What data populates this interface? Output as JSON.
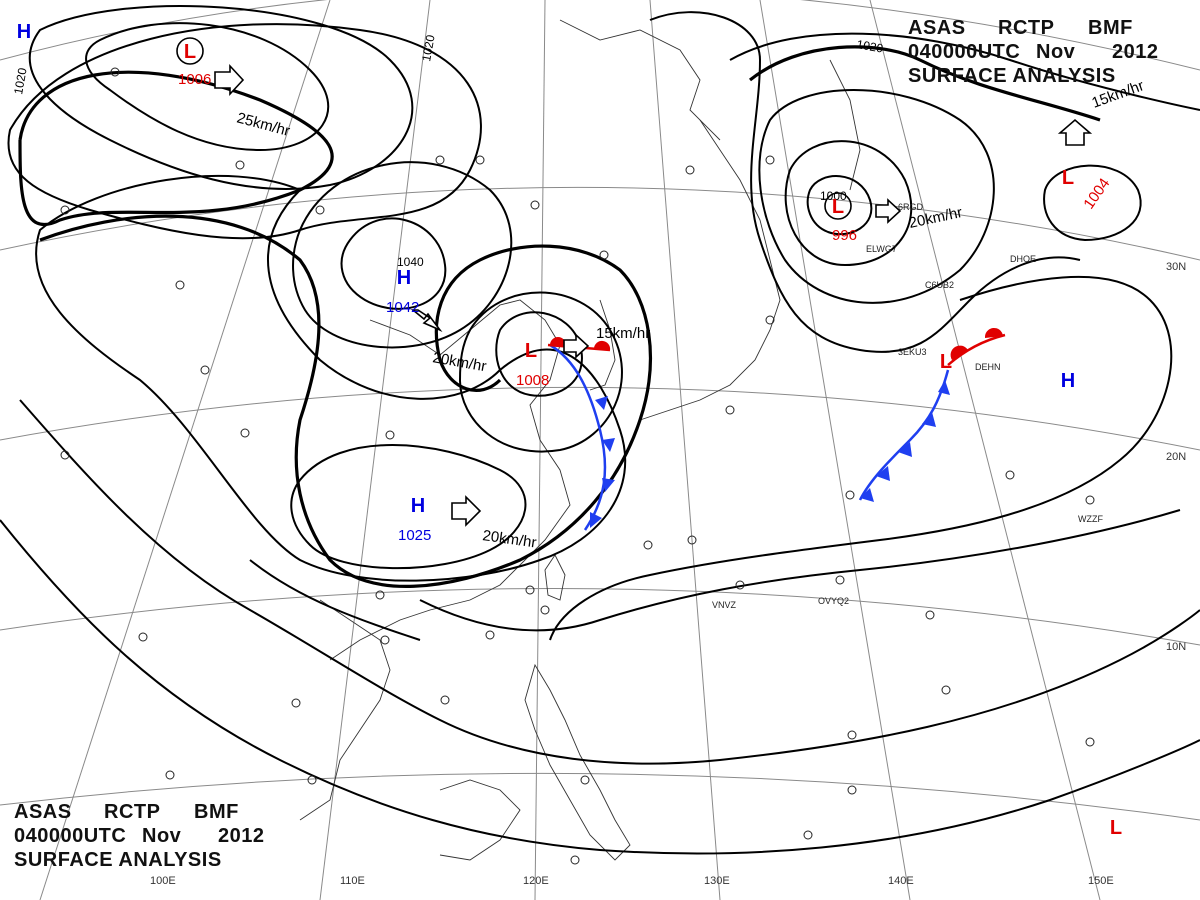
{
  "header": {
    "code": "ASAS",
    "station": "RCTP",
    "office": "BMF",
    "time": "040000UTC",
    "month": "Nov",
    "year": "2012",
    "title": "SURFACE ANALYSIS"
  },
  "colors": {
    "low": "#e00000",
    "high": "#0000e0",
    "cold_front": "#1f3ff0",
    "warm_front": "#e00000",
    "isobar": "#000000",
    "grid": "#7a7a7a"
  },
  "pressure_systems": [
    {
      "id": "low-nw",
      "type": "L",
      "value": "1006"
    },
    {
      "id": "high-nw-corner",
      "type": "H",
      "value": ""
    },
    {
      "id": "high-1042",
      "type": "H",
      "value": "1042"
    },
    {
      "id": "high-1025",
      "type": "H",
      "value": "1025"
    },
    {
      "id": "low-1008",
      "type": "L",
      "value": "1008"
    },
    {
      "id": "low-996",
      "type": "L",
      "value": "996"
    },
    {
      "id": "low-1004",
      "type": "L",
      "value": "1004"
    },
    {
      "id": "low-pacific-front",
      "type": "L",
      "value": ""
    },
    {
      "id": "high-pacific",
      "type": "H",
      "value": ""
    },
    {
      "id": "low-se",
      "type": "L",
      "value": ""
    }
  ],
  "isobar_labels": [
    "1020",
    "1020",
    "1020",
    "1040",
    "1000"
  ],
  "motion_labels": [
    "25km/hr",
    "20km/hr",
    "15km/hr",
    "20km/hr",
    "20km/hr",
    "15km/hr"
  ],
  "grid_labels": {
    "lat": [
      "30N",
      "20N",
      "10N"
    ],
    "lon": [
      "100E",
      "110E",
      "120E",
      "130E",
      "140E",
      "150E"
    ]
  },
  "station_labels": [
    "VNVZ",
    "OVYQ2",
    "WZZF",
    "DEHN",
    "C6UB2",
    "3EKU3",
    "ELWG7",
    "DHOE",
    "6RGD"
  ]
}
